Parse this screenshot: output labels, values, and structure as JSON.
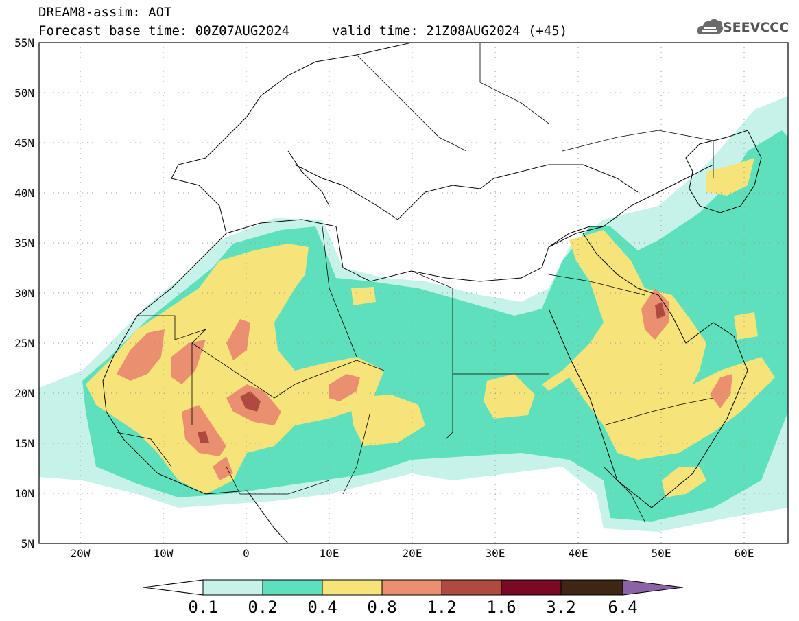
{
  "header": {
    "title": "DREAM8-assim: AOT",
    "base_time": "Forecast base time: 00Z07AUG2024",
    "valid_time": "valid time: 21Z08AUG2024 (+45)"
  },
  "logo": {
    "text": "SEEVCCC",
    "icon": "cloud-logo-icon"
  },
  "map": {
    "lat_labels": [
      "55N",
      "50N",
      "45N",
      "40N",
      "35N",
      "30N",
      "25N",
      "20N",
      "15N",
      "10N",
      "5N"
    ],
    "lon_labels": [
      "20W",
      "10W",
      "0",
      "10E",
      "20E",
      "30E",
      "40E",
      "50E",
      "60E"
    ],
    "lat_range": [
      5,
      55
    ],
    "lon_range": [
      -25,
      65
    ],
    "variable": "AOT"
  },
  "colorbar": {
    "ticks": [
      "0.1",
      "0.2",
      "0.4",
      "0.8",
      "1.2",
      "1.6",
      "3.2",
      "6.4"
    ],
    "colors": [
      "#c6f2ea",
      "#5ee0bd",
      "#f6e47a",
      "#ea9070",
      "#b04a40",
      "#7a0a24",
      "#3e2615",
      "#8c62a6"
    ]
  }
}
